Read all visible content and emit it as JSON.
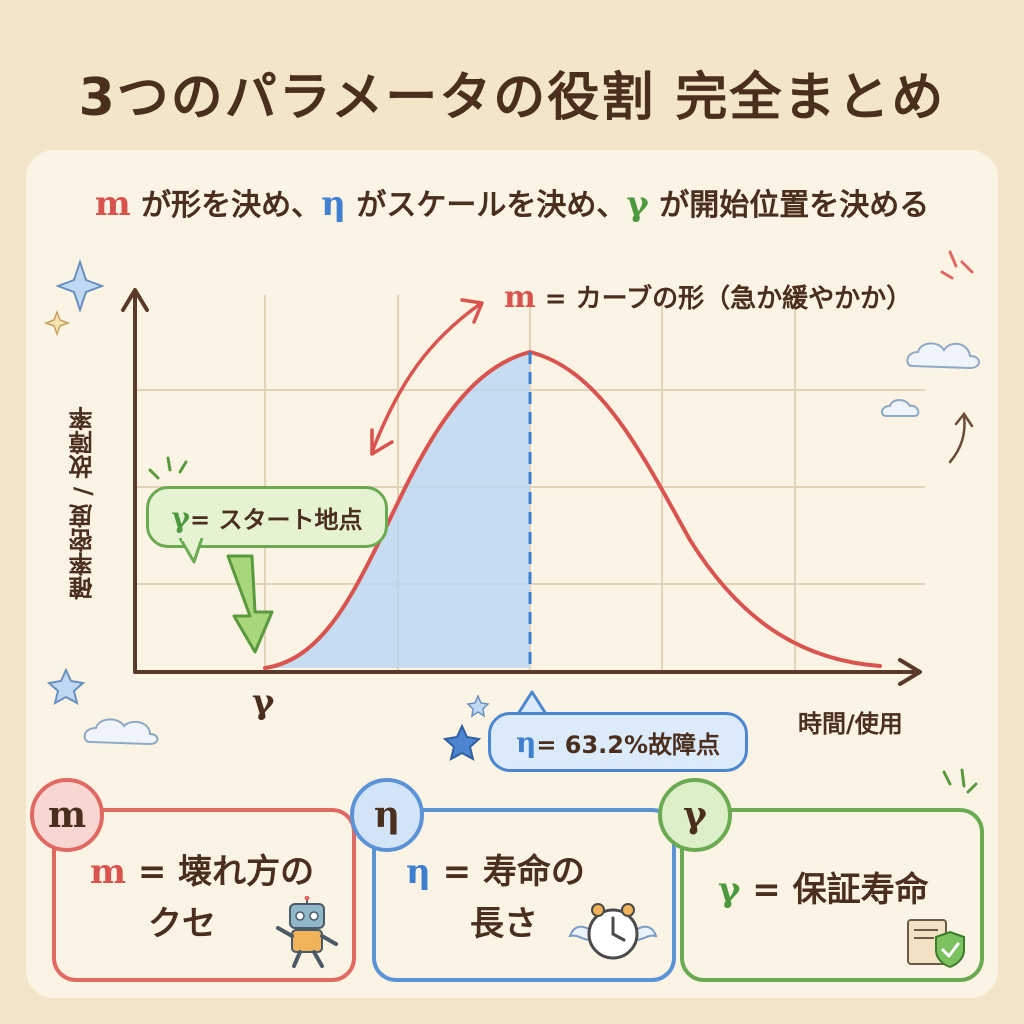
{
  "title": "3つのパラメータの役割 完全まとめ",
  "subtitle": {
    "m_symbol": "m",
    "m_text": " が形を決め、",
    "eta_symbol": "η",
    "eta_text": " がスケールを決め、",
    "gamma_symbol": "γ",
    "gamma_text": " が開始位置を決める"
  },
  "chart": {
    "y_axis_label": "確率密度 / 故障率",
    "x_axis_label": "時間/使用",
    "x_origin_label": "γ",
    "m_callout_symbol": "m",
    "m_callout_text": " = カーブの形（急か緩やかか）",
    "gamma_callout_symbol": "γ",
    "gamma_callout_text": " = スタート地点",
    "eta_callout_symbol": "η",
    "eta_callout_text": " = 63.2%故障点"
  },
  "cards": {
    "m": {
      "badge": "m",
      "symbol": "m",
      "line1": " = 壊れ方の",
      "line2": "クセ",
      "color": "#e06a63"
    },
    "eta": {
      "badge": "η",
      "symbol": "η",
      "line1": " = 寿命の",
      "line2": "長さ",
      "color": "#5b93d6"
    },
    "gamma": {
      "badge": "γ",
      "symbol": "γ",
      "line1": " = 保証寿命",
      "color": "#6aab52"
    }
  },
  "colors": {
    "red": "#d9534f",
    "blue": "#3f7fd0",
    "green": "#4d9a3e",
    "brown": "#4a2e1e",
    "shade": "#bcd7f2"
  }
}
